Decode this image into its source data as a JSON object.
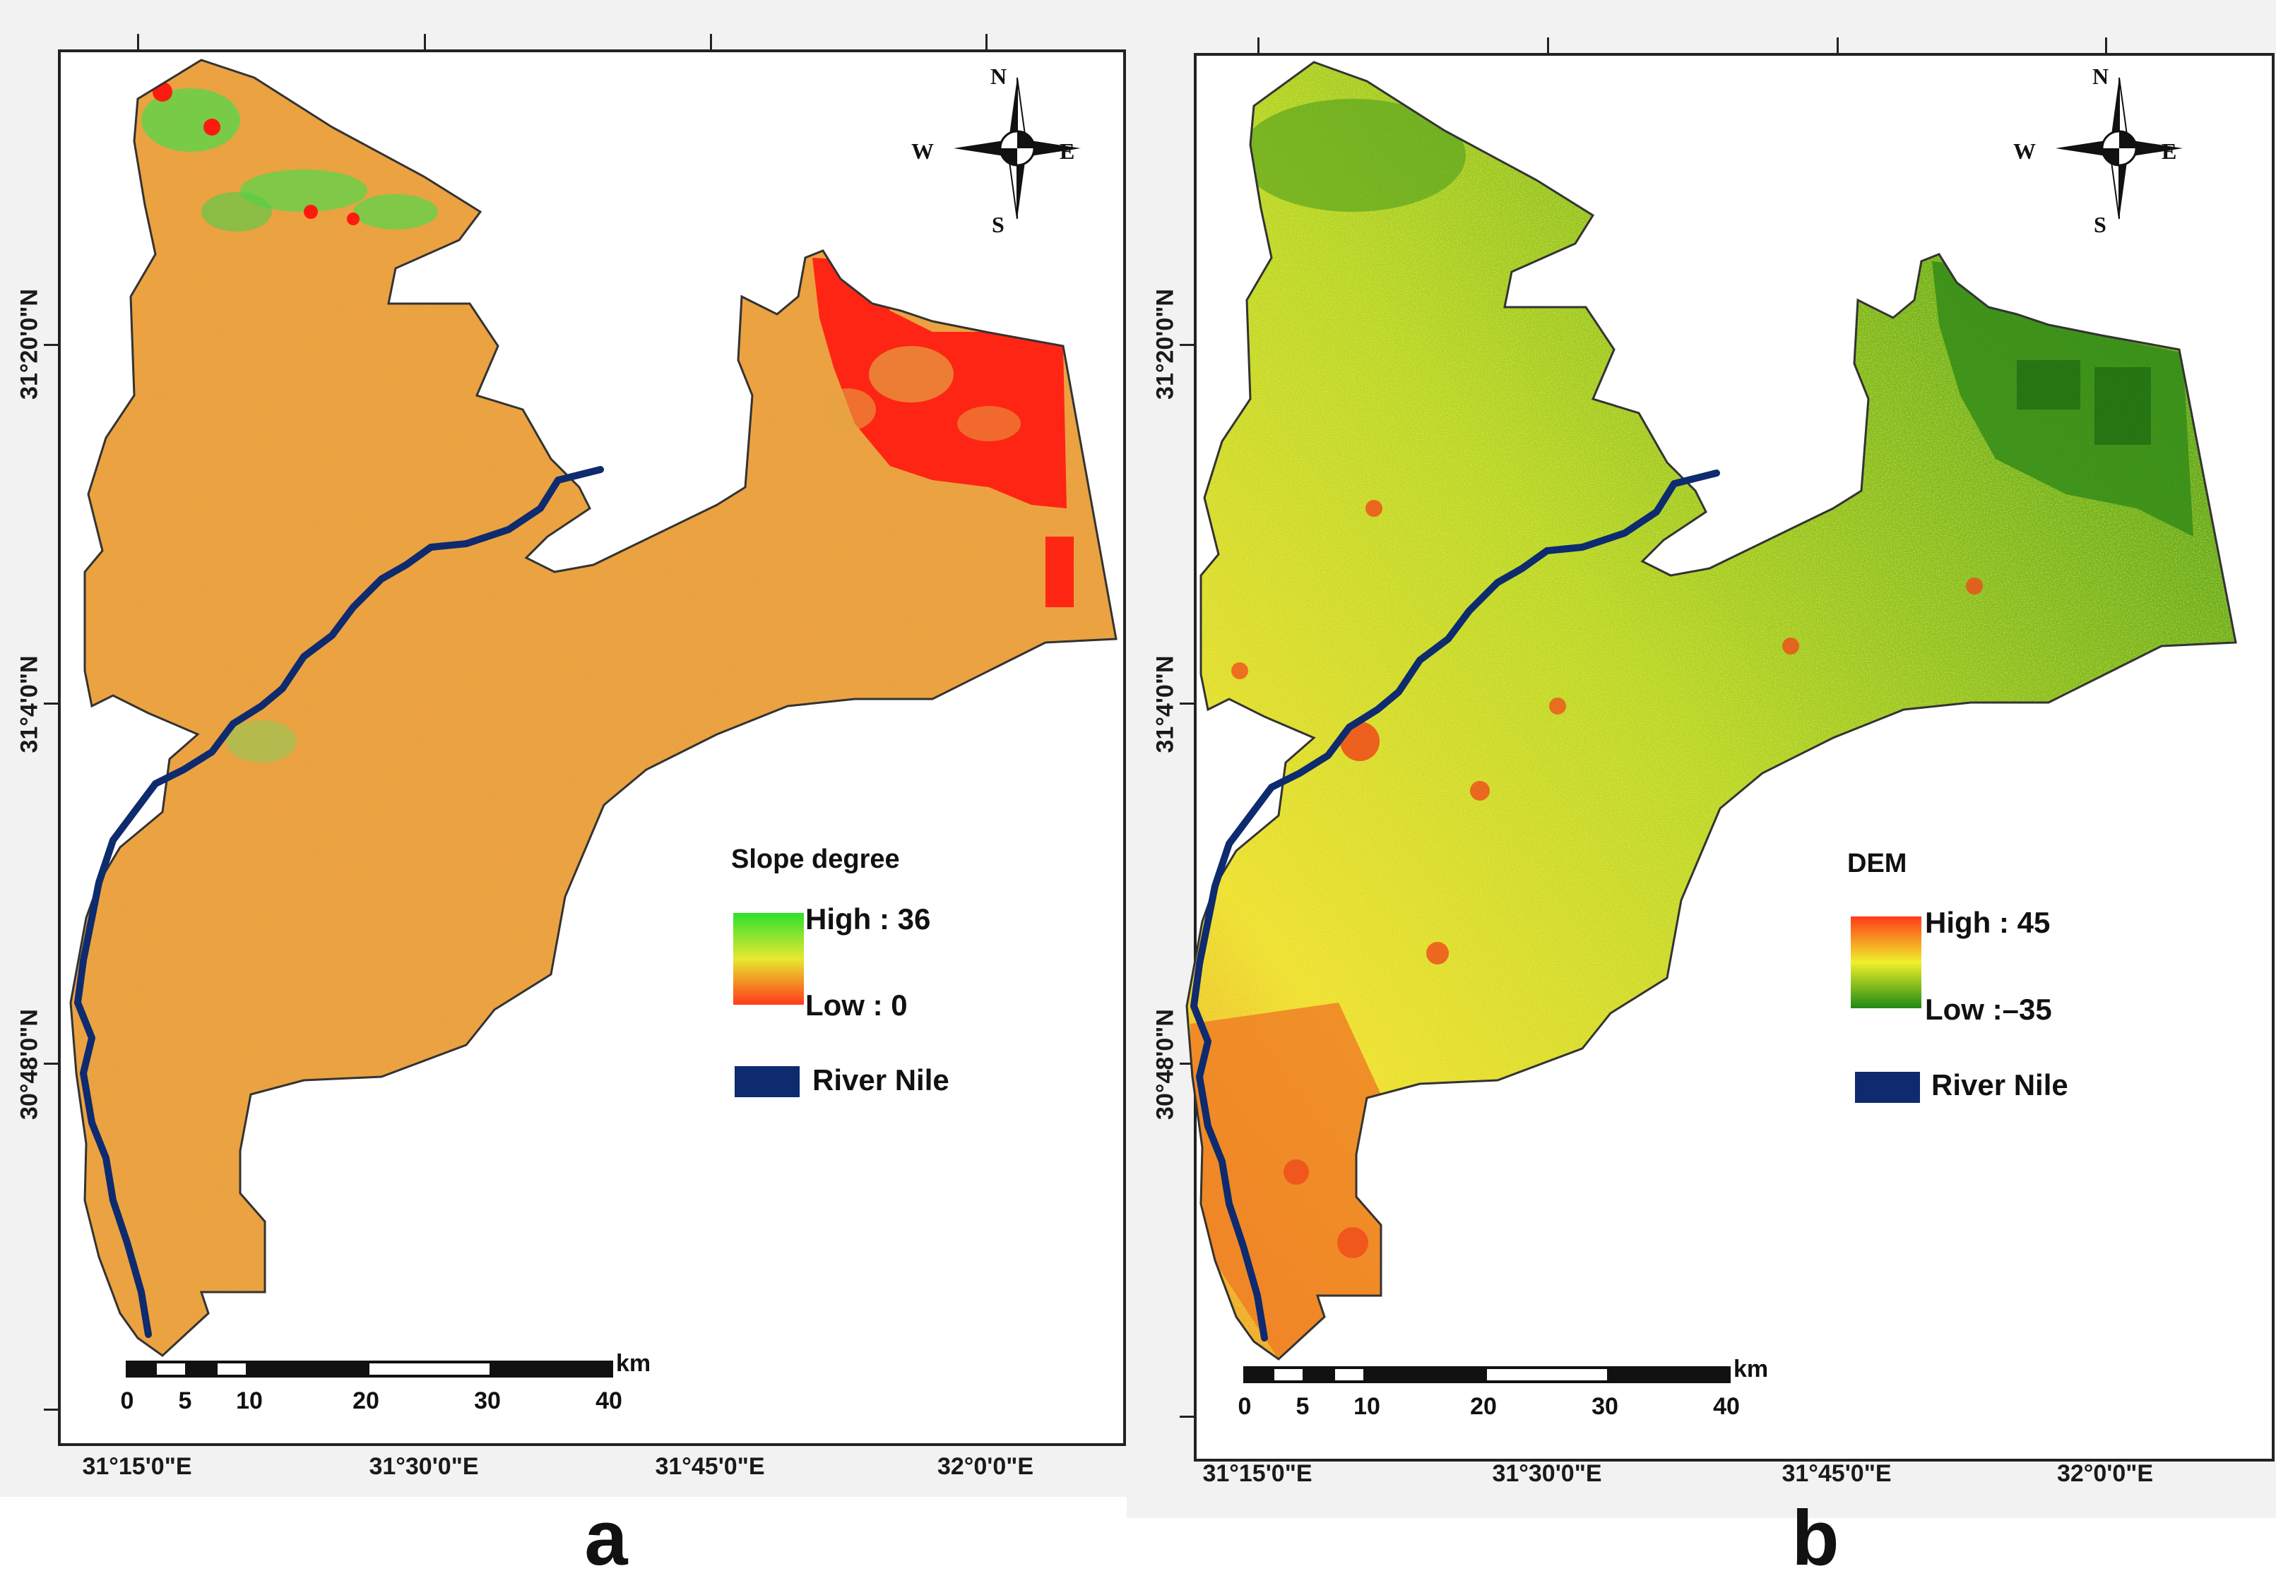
{
  "panels": {
    "a": {
      "letter": "a",
      "legend_title": "Slope degree",
      "legend_high": "High : 36",
      "legend_low": "Low : 0",
      "ramp_colors": [
        "#2ee02e",
        "#e8e830",
        "#ff3a1a"
      ],
      "land_color": "#e6a342",
      "hotspot_color": "#ff1a10",
      "green_color": "#52d84a"
    },
    "b": {
      "letter": "b",
      "legend_title": "DEM",
      "legend_high": "High : 45",
      "legend_low": "Low :–35",
      "ramp_colors": [
        "#ff3a1a",
        "#f0f02a",
        "#1e8a14"
      ],
      "land_color": "#9cc828",
      "south_color": "#f08a2a",
      "dark_green": "#2f8a18"
    }
  },
  "shared": {
    "river_label": "River Nile",
    "river_color": "#0d2b6e",
    "lat_labels": [
      "31°20'0\"N",
      "31°4'0\"N",
      "30°48'0\"N"
    ],
    "lon_labels": [
      "31°15'0\"E",
      "31°30'0\"E",
      "31°45'0\"E",
      "32°0'0\"E"
    ],
    "scale_labels": [
      "0",
      "5",
      "10",
      "20",
      "30",
      "40"
    ],
    "scale_unit": "km",
    "compass": {
      "n": "N",
      "s": "S",
      "e": "E",
      "w": "W"
    }
  }
}
